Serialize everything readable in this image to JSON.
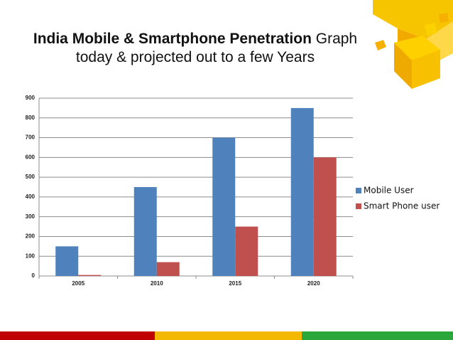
{
  "chart_data": {
    "type": "bar",
    "title": "India Mobile & Smartphone Penetration",
    "subtitle": "Graph today & projected out to a few Years",
    "categories": [
      "2005",
      "2010",
      "2015",
      "2020"
    ],
    "series": [
      {
        "name": "Mobile User",
        "color": "#4f81bd",
        "values": [
          150,
          450,
          700,
          850
        ]
      },
      {
        "name": "Smart Phone user",
        "color": "#c0504d",
        "values": [
          5,
          70,
          250,
          600
        ]
      }
    ],
    "ylim": [
      0,
      900
    ],
    "yticks": [
      0,
      100,
      200,
      300,
      400,
      500,
      600,
      700,
      800,
      900
    ],
    "grid": true,
    "legend": "right"
  }
}
